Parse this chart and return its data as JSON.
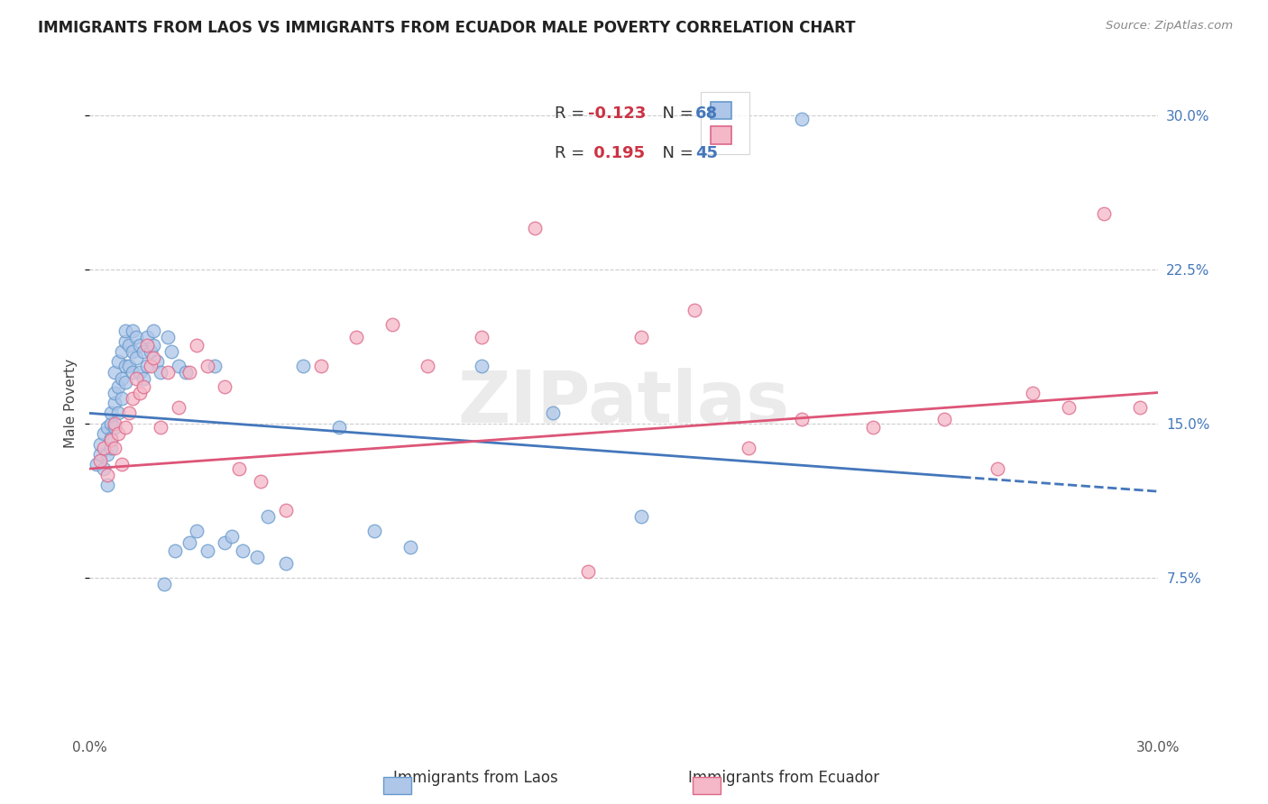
{
  "title": "IMMIGRANTS FROM LAOS VS IMMIGRANTS FROM ECUADOR MALE POVERTY CORRELATION CHART",
  "source": "Source: ZipAtlas.com",
  "ylabel": "Male Poverty",
  "ytick_labels": [
    "7.5%",
    "15.0%",
    "22.5%",
    "30.0%"
  ],
  "ytick_values": [
    0.075,
    0.15,
    0.225,
    0.3
  ],
  "xlim": [
    0.0,
    0.3
  ],
  "ylim": [
    0.0,
    0.32
  ],
  "laos_color": "#aec6e8",
  "ecuador_color": "#f4b8c8",
  "laos_edge_color": "#6699cc",
  "ecuador_edge_color": "#dd6688",
  "laos_line_color": "#4477bb",
  "ecuador_line_color": "#dd5577",
  "legend_r_color": "#cc3344",
  "legend_n_color": "#4477bb",
  "watermark": "ZIPatlas",
  "background_color": "#ffffff",
  "grid_color": "#cccccc",
  "laos_R": -0.123,
  "laos_N": 68,
  "ecuador_R": 0.195,
  "ecuador_N": 45,
  "laos_scatter_x": [
    0.002,
    0.003,
    0.003,
    0.004,
    0.004,
    0.005,
    0.005,
    0.005,
    0.006,
    0.006,
    0.006,
    0.006,
    0.007,
    0.007,
    0.007,
    0.007,
    0.008,
    0.008,
    0.008,
    0.009,
    0.009,
    0.009,
    0.01,
    0.01,
    0.01,
    0.01,
    0.011,
    0.011,
    0.012,
    0.012,
    0.012,
    0.013,
    0.013,
    0.014,
    0.014,
    0.015,
    0.015,
    0.016,
    0.016,
    0.017,
    0.018,
    0.018,
    0.019,
    0.02,
    0.021,
    0.022,
    0.023,
    0.024,
    0.025,
    0.027,
    0.028,
    0.03,
    0.033,
    0.035,
    0.038,
    0.04,
    0.043,
    0.047,
    0.05,
    0.055,
    0.06,
    0.07,
    0.08,
    0.09,
    0.11,
    0.13,
    0.155,
    0.2
  ],
  "laos_scatter_y": [
    0.13,
    0.135,
    0.14,
    0.128,
    0.145,
    0.12,
    0.135,
    0.148,
    0.138,
    0.143,
    0.15,
    0.155,
    0.148,
    0.16,
    0.165,
    0.175,
    0.155,
    0.168,
    0.18,
    0.162,
    0.172,
    0.185,
    0.17,
    0.178,
    0.19,
    0.195,
    0.178,
    0.188,
    0.175,
    0.185,
    0.195,
    0.182,
    0.192,
    0.175,
    0.188,
    0.172,
    0.185,
    0.178,
    0.192,
    0.185,
    0.188,
    0.195,
    0.18,
    0.175,
    0.072,
    0.192,
    0.185,
    0.088,
    0.178,
    0.175,
    0.092,
    0.098,
    0.088,
    0.178,
    0.092,
    0.095,
    0.088,
    0.085,
    0.105,
    0.082,
    0.178,
    0.148,
    0.098,
    0.09,
    0.178,
    0.155,
    0.105,
    0.298
  ],
  "ecuador_scatter_x": [
    0.003,
    0.004,
    0.005,
    0.006,
    0.007,
    0.007,
    0.008,
    0.009,
    0.01,
    0.011,
    0.012,
    0.013,
    0.014,
    0.015,
    0.016,
    0.017,
    0.018,
    0.02,
    0.022,
    0.025,
    0.028,
    0.03,
    0.033,
    0.038,
    0.042,
    0.048,
    0.055,
    0.065,
    0.075,
    0.085,
    0.095,
    0.11,
    0.125,
    0.14,
    0.155,
    0.17,
    0.185,
    0.2,
    0.22,
    0.24,
    0.255,
    0.265,
    0.275,
    0.285,
    0.295
  ],
  "ecuador_scatter_y": [
    0.132,
    0.138,
    0.125,
    0.142,
    0.138,
    0.15,
    0.145,
    0.13,
    0.148,
    0.155,
    0.162,
    0.172,
    0.165,
    0.168,
    0.188,
    0.178,
    0.182,
    0.148,
    0.175,
    0.158,
    0.175,
    0.188,
    0.178,
    0.168,
    0.128,
    0.122,
    0.108,
    0.178,
    0.192,
    0.198,
    0.178,
    0.192,
    0.245,
    0.078,
    0.192,
    0.205,
    0.138,
    0.152,
    0.148,
    0.152,
    0.128,
    0.165,
    0.158,
    0.252,
    0.158
  ],
  "laos_line_x0": 0.0,
  "laos_line_x1": 0.245,
  "laos_line_dash_x0": 0.245,
  "laos_line_dash_x1": 0.305,
  "laos_line_y_at_0": 0.155,
  "laos_line_y_at_30": 0.117,
  "ecuador_line_y_at_0": 0.128,
  "ecuador_line_y_at_30": 0.165
}
